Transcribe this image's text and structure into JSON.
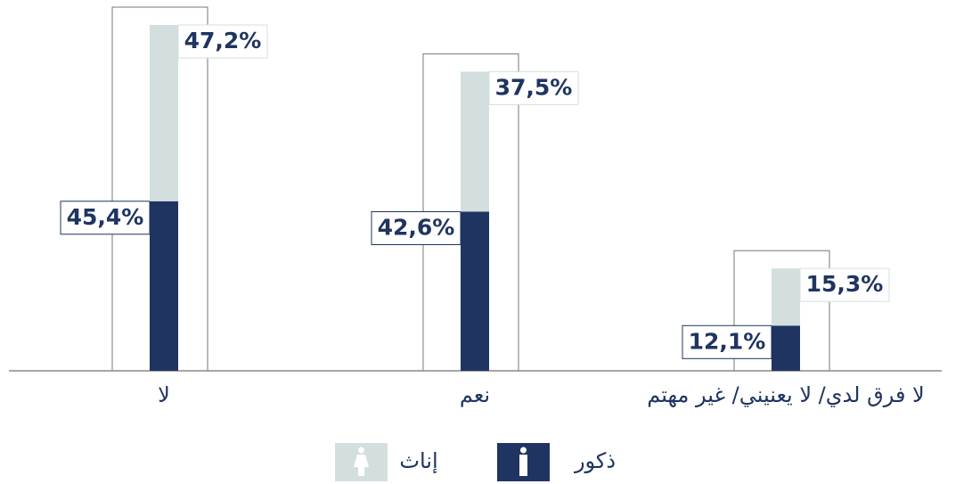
{
  "chart_data": {
    "type": "bar",
    "stacked": true,
    "categories": [
      "لا",
      "نعم",
      "لا فرق لدي/ لا يعنيني/ غير مهتم"
    ],
    "series": [
      {
        "name": "ذكور",
        "color": "#1f3461",
        "values": [
          45.4,
          42.6,
          12.1
        ],
        "value_labels": [
          "45,4%",
          "42,6%",
          "12,1%"
        ]
      },
      {
        "name": "إناث",
        "color": "#d3dfdf",
        "values": [
          47.2,
          37.5,
          15.3
        ],
        "value_labels": [
          "47,2%",
          "37,5%",
          "15,3%"
        ]
      }
    ]
  }
}
